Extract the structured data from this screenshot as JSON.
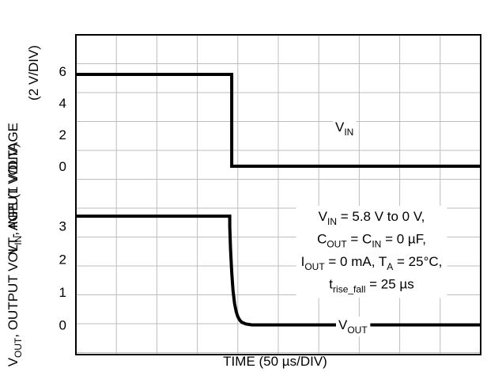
{
  "chart_data": {
    "type": "line",
    "title": "",
    "xlabel": "TIME (50 µs/DIV)",
    "grid": true,
    "x_divisions": 10,
    "x_unit_per_div_us": 50,
    "panels": [
      {
        "id": "vin",
        "ylabel": [
          "V",
          "IN",
          ", INPUT VOLTAGE",
          "(2 V/DIV)"
        ],
        "ylim": [
          -1.7,
          8.3
        ],
        "yticks": [
          {
            "value": 0,
            "label": "0"
          },
          {
            "value": 2,
            "label": "2"
          },
          {
            "value": 4,
            "label": "4"
          },
          {
            "value": 6,
            "label": "6"
          }
        ],
        "series": [
          {
            "name": "V_IN",
            "label_main": "V",
            "label_sub": "IN",
            "x_div": [
              0,
              3.85,
              3.85,
              10
            ],
            "y": [
              5.8,
              5.8,
              0,
              0
            ]
          }
        ]
      },
      {
        "id": "vout",
        "ylabel": [
          "V",
          "OUT",
          ", OUTPUT VOLT- AGE (1 V/DIV)"
        ],
        "ylim": [
          -0.9,
          4.0
        ],
        "yticks": [
          {
            "value": 0,
            "label": "0"
          },
          {
            "value": 1,
            "label": "1"
          },
          {
            "value": 2,
            "label": "2"
          },
          {
            "value": 3,
            "label": "3"
          }
        ],
        "series": [
          {
            "name": "V_OUT",
            "label_main": "V",
            "label_sub": "OUT",
            "x_div": [
              0,
              3.8,
              3.8,
              3.82,
              3.85,
              3.88,
              3.92,
              3.96,
              4.0,
              4.05,
              4.1,
              4.2,
              4.35,
              10
            ],
            "y": [
              3.3,
              3.3,
              3.0,
              2.3,
              1.6,
              1.05,
              0.65,
              0.4,
              0.25,
              0.14,
              0.08,
              0.03,
              0.0,
              0.0
            ]
          }
        ]
      }
    ],
    "conditions": [
      [
        {
          "t": "V"
        },
        {
          "t": "IN",
          "sub": true
        },
        {
          "t": " = 5.8 V to 0 V,"
        }
      ],
      [
        {
          "t": "C"
        },
        {
          "t": "OUT",
          "sub": true
        },
        {
          "t": " = C"
        },
        {
          "t": "IN",
          "sub": true
        },
        {
          "t": " = 0 µF,"
        }
      ],
      [
        {
          "t": "I"
        },
        {
          "t": "OUT",
          "sub": true
        },
        {
          "t": " = 0 mA, T"
        },
        {
          "t": "A",
          "sub": true
        },
        {
          "t": " = 25°C,"
        }
      ],
      [
        {
          "t": "t"
        },
        {
          "t": "rise_fall",
          "sub": true
        },
        {
          "t": " = 25 µs"
        }
      ]
    ]
  }
}
